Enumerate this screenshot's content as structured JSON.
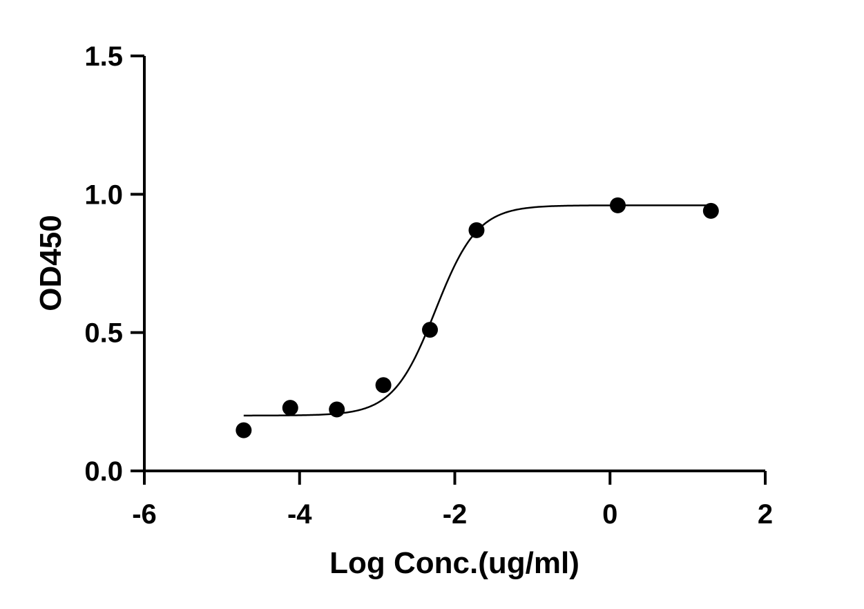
{
  "chart_data": {
    "type": "scatter",
    "title": "",
    "xlabel": "Log Conc.(ug/ml)",
    "ylabel": "OD450",
    "xlim": [
      -6,
      2
    ],
    "ylim": [
      0,
      1.5
    ],
    "x_ticks": [
      -6,
      -4,
      -2,
      0,
      2
    ],
    "y_ticks": [
      0.0,
      0.5,
      1.0,
      1.5
    ],
    "x_tick_labels": [
      "-6",
      "-4",
      "-2",
      "0",
      "2"
    ],
    "y_tick_labels": [
      "0.0",
      "0.5",
      "1.0",
      "1.5"
    ],
    "grid": false,
    "legend": "none",
    "series": [
      {
        "x": [
          -4.72,
          -4.12,
          -3.52,
          -2.92,
          -2.32,
          -1.72,
          0.1,
          1.3
        ],
        "y": [
          0.147,
          0.228,
          0.222,
          0.31,
          0.51,
          0.87,
          0.96,
          0.94
        ],
        "marker": "circle",
        "color": "#000000"
      }
    ],
    "fit_curve": {
      "model": "4PL",
      "bottom": 0.2,
      "top": 0.96,
      "log_ec50": -2.25,
      "hill_slope": 1.6,
      "x_range": [
        -4.72,
        1.3
      ],
      "color": "#000000"
    }
  }
}
